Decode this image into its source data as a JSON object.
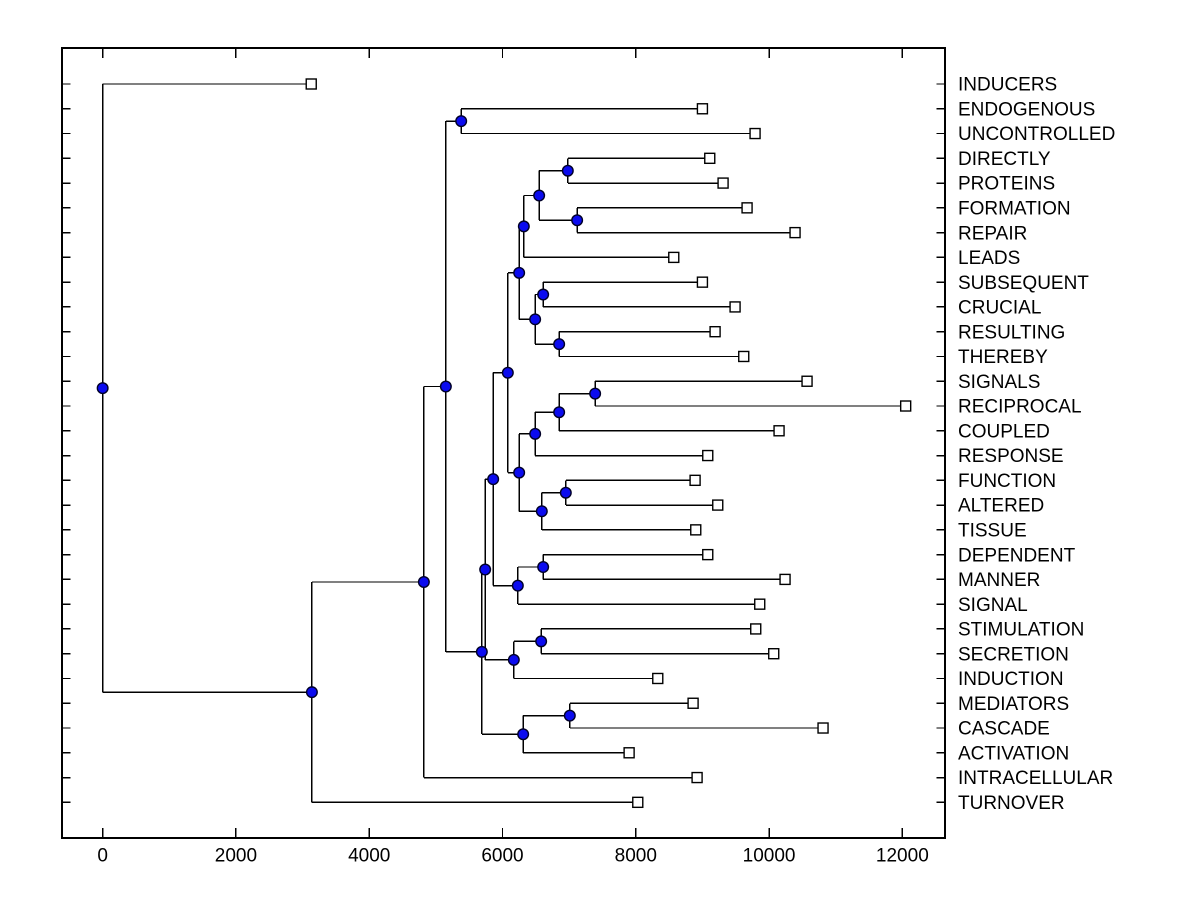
{
  "figure": {
    "title": "",
    "background": "#ffffff"
  },
  "chart_data": {
    "type": "dendrogram",
    "subtype": "phylogenetic-tree",
    "orientation": "horizontal, leaves on right",
    "title": "",
    "xlabel": "",
    "ylabel": "",
    "grid": false,
    "x_axis": {
      "ticks": [
        0,
        2000,
        4000,
        6000,
        8000,
        10000,
        12000
      ],
      "tick_labels": [
        "0",
        "2000",
        "4000",
        "6000",
        "8000",
        "10000",
        "12000"
      ],
      "lim": [
        -610,
        12640
      ]
    },
    "leaf_labels": [
      "INDUCERS",
      "ENDOGENOUS",
      "UNCONTROLLED",
      "DIRECTLY",
      "PROTEINS",
      "FORMATION",
      "REPAIR",
      "LEADS",
      "SUBSEQUENT",
      "CRUCIAL",
      "RESULTING",
      "THEREBY",
      "SIGNALS",
      "RECIPROCAL",
      "COUPLED",
      "RESPONSE",
      "FUNCTION",
      "ALTERED",
      "TISSUE",
      "DEPENDENT",
      "MANNER",
      "SIGNAL",
      "STIMULATION",
      "SECRETION",
      "INDUCTION",
      "MEDIATORS",
      "CASCADE",
      "ACTIVATION",
      "INTRACELLULAR",
      "TURNOVER"
    ],
    "leaves": [
      {
        "label": "INDUCERS",
        "distance": 3130
      },
      {
        "label": "ENDOGENOUS",
        "distance": 9000
      },
      {
        "label": "UNCONTROLLED",
        "distance": 9790
      },
      {
        "label": "DIRECTLY",
        "distance": 9110
      },
      {
        "label": "PROTEINS",
        "distance": 9310
      },
      {
        "label": "FORMATION",
        "distance": 9670
      },
      {
        "label": "REPAIR",
        "distance": 10390
      },
      {
        "label": "LEADS",
        "distance": 8570
      },
      {
        "label": "SUBSEQUENT",
        "distance": 9000
      },
      {
        "label": "CRUCIAL",
        "distance": 9490
      },
      {
        "label": "RESULTING",
        "distance": 9190
      },
      {
        "label": "THEREBY",
        "distance": 9620
      },
      {
        "label": "SIGNALS",
        "distance": 10570
      },
      {
        "label": "RECIPROCAL",
        "distance": 12050
      },
      {
        "label": "COUPLED",
        "distance": 10150
      },
      {
        "label": "RESPONSE",
        "distance": 9080
      },
      {
        "label": "FUNCTION",
        "distance": 8890
      },
      {
        "label": "ALTERED",
        "distance": 9230
      },
      {
        "label": "TISSUE",
        "distance": 8900
      },
      {
        "label": "DEPENDENT",
        "distance": 9080
      },
      {
        "label": "MANNER",
        "distance": 10240
      },
      {
        "label": "SIGNAL",
        "distance": 9860
      },
      {
        "label": "STIMULATION",
        "distance": 9800
      },
      {
        "label": "SECRETION",
        "distance": 10070
      },
      {
        "label": "INDUCTION",
        "distance": 8330
      },
      {
        "label": "MEDIATORS",
        "distance": 8860
      },
      {
        "label": "CASCADE",
        "distance": 10810
      },
      {
        "label": "ACTIVATION",
        "distance": 7900
      },
      {
        "label": "INTRACELLULAR",
        "distance": 8920
      },
      {
        "label": "TURNOVER",
        "distance": 8030
      }
    ],
    "tree": {
      "dist": 0,
      "children": [
        {
          "name": "INDUCERS",
          "dist": 3130
        },
        {
          "dist": 3140,
          "children": [
            {
              "dist": 4820,
              "children": [
                {
                  "dist": 5150,
                  "children": [
                    {
                      "dist": 5380,
                      "children": [
                        {
                          "name": "ENDOGENOUS",
                          "dist": 9000
                        },
                        {
                          "name": "UNCONTROLLED",
                          "dist": 9790
                        }
                      ]
                    },
                    {
                      "dist": 5690,
                      "children": [
                        {
                          "dist": 5740,
                          "children": [
                            {
                              "dist": 5860,
                              "children": [
                                {
                                  "dist": 6080,
                                  "children": [
                                    {
                                      "dist": 6250,
                                      "children": [
                                        {
                                          "dist": 6320,
                                          "children": [
                                            {
                                              "dist": 6550,
                                              "children": [
                                                {
                                                  "dist": 6980,
                                                  "children": [
                                                    {
                                                      "name": "DIRECTLY",
                                                      "dist": 9110
                                                    },
                                                    {
                                                      "name": "PROTEINS",
                                                      "dist": 9310
                                                    }
                                                  ]
                                                },
                                                {
                                                  "dist": 7120,
                                                  "children": [
                                                    {
                                                      "name": "FORMATION",
                                                      "dist": 9670
                                                    },
                                                    {
                                                      "name": "REPAIR",
                                                      "dist": 10390
                                                    }
                                                  ]
                                                }
                                              ]
                                            },
                                            {
                                              "name": "LEADS",
                                              "dist": 8570
                                            }
                                          ]
                                        },
                                        {
                                          "dist": 6490,
                                          "children": [
                                            {
                                              "dist": 6610,
                                              "children": [
                                                {
                                                  "name": "SUBSEQUENT",
                                                  "dist": 9000
                                                },
                                                {
                                                  "name": "CRUCIAL",
                                                  "dist": 9490
                                                }
                                              ]
                                            },
                                            {
                                              "dist": 6850,
                                              "children": [
                                                {
                                                  "name": "RESULTING",
                                                  "dist": 9190
                                                },
                                                {
                                                  "name": "THEREBY",
                                                  "dist": 9620
                                                }
                                              ]
                                            }
                                          ]
                                        }
                                      ]
                                    },
                                    {
                                      "dist": 6250,
                                      "children": [
                                        {
                                          "dist": 6490,
                                          "children": [
                                            {
                                              "dist": 6850,
                                              "children": [
                                                {
                                                  "dist": 7390,
                                                  "children": [
                                                    {
                                                      "name": "SIGNALS",
                                                      "dist": 10570
                                                    },
                                                    {
                                                      "name": "RECIPROCAL",
                                                      "dist": 12050
                                                    }
                                                  ]
                                                },
                                                {
                                                  "name": "COUPLED",
                                                  "dist": 10150
                                                }
                                              ]
                                            },
                                            {
                                              "name": "RESPONSE",
                                              "dist": 9080
                                            }
                                          ]
                                        },
                                        {
                                          "dist": 6590,
                                          "children": [
                                            {
                                              "dist": 6950,
                                              "children": [
                                                {
                                                  "name": "FUNCTION",
                                                  "dist": 8890
                                                },
                                                {
                                                  "name": "ALTERED",
                                                  "dist": 9230
                                                }
                                              ]
                                            },
                                            {
                                              "name": "TISSUE",
                                              "dist": 8900
                                            }
                                          ]
                                        }
                                      ]
                                    }
                                  ]
                                },
                                {
                                  "dist": 6230,
                                  "children": [
                                    {
                                      "dist": 6610,
                                      "children": [
                                        {
                                          "name": "DEPENDENT",
                                          "dist": 9080
                                        },
                                        {
                                          "name": "MANNER",
                                          "dist": 10240
                                        }
                                      ]
                                    },
                                    {
                                      "name": "SIGNAL",
                                      "dist": 9860
                                    }
                                  ]
                                }
                              ]
                            },
                            {
                              "dist": 6170,
                              "children": [
                                {
                                  "dist": 6580,
                                  "children": [
                                    {
                                      "name": "STIMULATION",
                                      "dist": 9800
                                    },
                                    {
                                      "name": "SECRETION",
                                      "dist": 10070
                                    }
                                  ]
                                },
                                {
                                  "name": "INDUCTION",
                                  "dist": 8330
                                }
                              ]
                            }
                          ]
                        },
                        {
                          "dist": 6310,
                          "children": [
                            {
                              "dist": 7010,
                              "children": [
                                {
                                  "name": "MEDIATORS",
                                  "dist": 8860
                                },
                                {
                                  "name": "CASCADE",
                                  "dist": 10810
                                }
                              ]
                            },
                            {
                              "name": "ACTIVATION",
                              "dist": 7900
                            }
                          ]
                        }
                      ]
                    }
                  ]
                },
                {
                  "name": "INTRACELLULAR",
                  "dist": 8920
                }
              ]
            },
            {
              "name": "TURNOVER",
              "dist": 8030
            }
          ]
        }
      ]
    },
    "style": {
      "line_color": "#000000",
      "branch_marker": "filled-circle",
      "branch_marker_fill": "#0b0bef",
      "branch_marker_edge": "#000028",
      "leaf_marker": "open-square",
      "leaf_marker_fill": "#ffffff",
      "leaf_marker_edge": "#000000",
      "text_color": "#000000",
      "background": "#ffffff"
    }
  }
}
